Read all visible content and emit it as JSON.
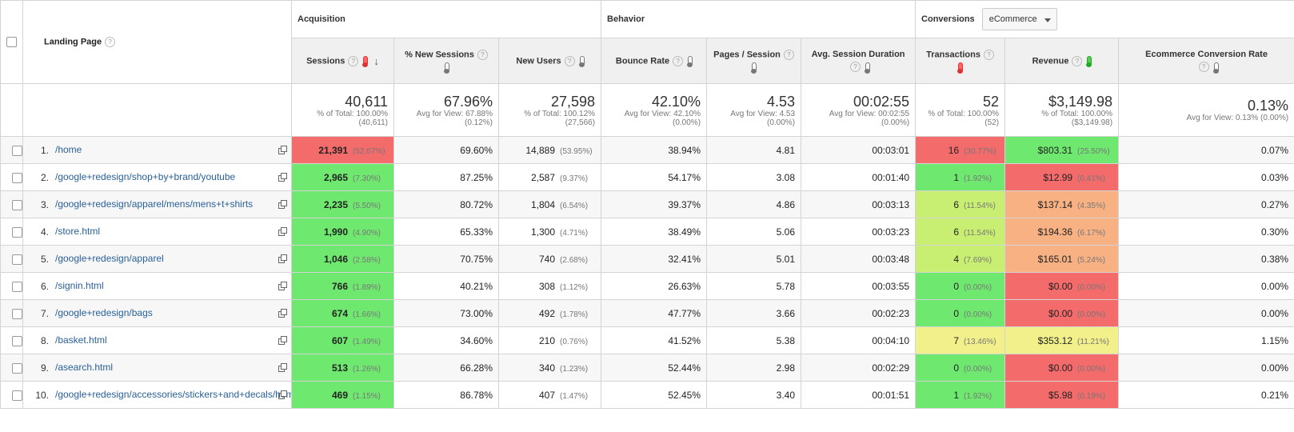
{
  "header": {
    "landing_page": "Landing Page",
    "groups": {
      "acquisition": "Acquisition",
      "behavior": "Behavior",
      "conversions": "Conversions"
    },
    "conversions_select": "eCommerce",
    "columns": {
      "sessions": "Sessions",
      "new_sessions": "% New Sessions",
      "new_users": "New Users",
      "bounce_rate": "Bounce Rate",
      "pages_session": "Pages / Session",
      "avg_duration": "Avg. Session Duration",
      "transactions": "Transactions",
      "revenue": "Revenue",
      "conv_rate": "Ecommerce Conversion Rate"
    },
    "help": "?"
  },
  "colors": {
    "heat_red": "#f46b6b",
    "heat_green": "#6fe86f",
    "heat_lime": "#c9ef72",
    "heat_yellow": "#f1f08a",
    "heat_orange": "#f7b183",
    "link": "#2a6099"
  },
  "totals": {
    "sessions": {
      "value": "40,611",
      "sub1": "% of Total: 100.00%",
      "sub2": "(40,611)"
    },
    "new_sessions": {
      "value": "67.96%",
      "sub1": "Avg for View: 67.88%",
      "sub2": "(0.12%)"
    },
    "new_users": {
      "value": "27,598",
      "sub1": "% of Total: 100.12%",
      "sub2": "(27,566)"
    },
    "bounce_rate": {
      "value": "42.10%",
      "sub1": "Avg for View: 42.10%",
      "sub2": "(0.00%)"
    },
    "pages_session": {
      "value": "4.53",
      "sub1": "Avg for View: 4.53",
      "sub2": "(0.00%)"
    },
    "avg_duration": {
      "value": "00:02:55",
      "sub1": "Avg for View: 00:02:55",
      "sub2": "(0.00%)"
    },
    "transactions": {
      "value": "52",
      "sub1": "% of Total: 100.00%",
      "sub2": "(52)"
    },
    "revenue": {
      "value": "$3,149.98",
      "sub1": "% of Total: 100.00%",
      "sub2": "($3,149.98)"
    },
    "conv_rate": {
      "value": "0.13%",
      "sub1": "Avg for View: 0.13% (0.00%)",
      "sub2": ""
    }
  },
  "rows": [
    {
      "rank": "1.",
      "page": "/home",
      "sessions": "21,391",
      "sessions_pct": "(52.67%)",
      "new_sessions": "69.60%",
      "new_users": "14,889",
      "new_users_pct": "(53.95%)",
      "bounce_rate": "38.94%",
      "pages_session": "4.81",
      "avg_duration": "00:03:01",
      "transactions": "16",
      "transactions_pct": "(30.77%)",
      "revenue": "$803.31",
      "revenue_pct": "(25.50%)",
      "conv_rate": "0.07%",
      "sessions_heat": "red",
      "tx_heat": "red",
      "rev_heat": "green"
    },
    {
      "rank": "2.",
      "page": "/google+redesign/shop+by+brand/youtube",
      "sessions": "2,965",
      "sessions_pct": "(7.30%)",
      "new_sessions": "87.25%",
      "new_users": "2,587",
      "new_users_pct": "(9.37%)",
      "bounce_rate": "54.17%",
      "pages_session": "3.08",
      "avg_duration": "00:01:40",
      "transactions": "1",
      "transactions_pct": "(1.92%)",
      "revenue": "$12.99",
      "revenue_pct": "(0.41%)",
      "conv_rate": "0.03%",
      "sessions_heat": "green",
      "tx_heat": "green",
      "rev_heat": "red"
    },
    {
      "rank": "3.",
      "page": "/google+redesign/apparel/mens/mens+t+shirts",
      "sessions": "2,235",
      "sessions_pct": "(5.50%)",
      "new_sessions": "80.72%",
      "new_users": "1,804",
      "new_users_pct": "(6.54%)",
      "bounce_rate": "39.37%",
      "pages_session": "4.86",
      "avg_duration": "00:03:13",
      "transactions": "6",
      "transactions_pct": "(11.54%)",
      "revenue": "$137.14",
      "revenue_pct": "(4.35%)",
      "conv_rate": "0.27%",
      "sessions_heat": "green",
      "tx_heat": "lime",
      "rev_heat": "orange"
    },
    {
      "rank": "4.",
      "page": "/store.html",
      "sessions": "1,990",
      "sessions_pct": "(4.90%)",
      "new_sessions": "65.33%",
      "new_users": "1,300",
      "new_users_pct": "(4.71%)",
      "bounce_rate": "38.49%",
      "pages_session": "5.06",
      "avg_duration": "00:03:23",
      "transactions": "6",
      "transactions_pct": "(11.54%)",
      "revenue": "$194.36",
      "revenue_pct": "(6.17%)",
      "conv_rate": "0.30%",
      "sessions_heat": "green",
      "tx_heat": "lime",
      "rev_heat": "orange"
    },
    {
      "rank": "5.",
      "page": "/google+redesign/apparel",
      "sessions": "1,046",
      "sessions_pct": "(2.58%)",
      "new_sessions": "70.75%",
      "new_users": "740",
      "new_users_pct": "(2.68%)",
      "bounce_rate": "32.41%",
      "pages_session": "5.01",
      "avg_duration": "00:03:48",
      "transactions": "4",
      "transactions_pct": "(7.69%)",
      "revenue": "$165.01",
      "revenue_pct": "(5.24%)",
      "conv_rate": "0.38%",
      "sessions_heat": "green",
      "tx_heat": "lime",
      "rev_heat": "orange"
    },
    {
      "rank": "6.",
      "page": "/signin.html",
      "sessions": "766",
      "sessions_pct": "(1.89%)",
      "new_sessions": "40.21%",
      "new_users": "308",
      "new_users_pct": "(1.12%)",
      "bounce_rate": "26.63%",
      "pages_session": "5.78",
      "avg_duration": "00:03:55",
      "transactions": "0",
      "transactions_pct": "(0.00%)",
      "revenue": "$0.00",
      "revenue_pct": "(0.00%)",
      "conv_rate": "0.00%",
      "sessions_heat": "green",
      "tx_heat": "green",
      "rev_heat": "red"
    },
    {
      "rank": "7.",
      "page": "/google+redesign/bags",
      "sessions": "674",
      "sessions_pct": "(1.66%)",
      "new_sessions": "73.00%",
      "new_users": "492",
      "new_users_pct": "(1.78%)",
      "bounce_rate": "47.77%",
      "pages_session": "3.66",
      "avg_duration": "00:02:23",
      "transactions": "0",
      "transactions_pct": "(0.00%)",
      "revenue": "$0.00",
      "revenue_pct": "(0.00%)",
      "conv_rate": "0.00%",
      "sessions_heat": "green",
      "tx_heat": "green",
      "rev_heat": "red"
    },
    {
      "rank": "8.",
      "page": "/basket.html",
      "sessions": "607",
      "sessions_pct": "(1.49%)",
      "new_sessions": "34.60%",
      "new_users": "210",
      "new_users_pct": "(0.76%)",
      "bounce_rate": "41.52%",
      "pages_session": "5.38",
      "avg_duration": "00:04:10",
      "transactions": "7",
      "transactions_pct": "(13.46%)",
      "revenue": "$353.12",
      "revenue_pct": "(11.21%)",
      "conv_rate": "1.15%",
      "sessions_heat": "green",
      "tx_heat": "yellow",
      "rev_heat": "yellow"
    },
    {
      "rank": "9.",
      "page": "/asearch.html",
      "sessions": "513",
      "sessions_pct": "(1.26%)",
      "new_sessions": "66.28%",
      "new_users": "340",
      "new_users_pct": "(1.23%)",
      "bounce_rate": "52.44%",
      "pages_session": "2.98",
      "avg_duration": "00:02:29",
      "transactions": "0",
      "transactions_pct": "(0.00%)",
      "revenue": "$0.00",
      "revenue_pct": "(0.00%)",
      "conv_rate": "0.00%",
      "sessions_heat": "green",
      "tx_heat": "green",
      "rev_heat": "red"
    },
    {
      "rank": "10.",
      "page": "/google+redesign/accessories/stickers+and+decals/home",
      "sessions": "469",
      "sessions_pct": "(1.15%)",
      "new_sessions": "86.78%",
      "new_users": "407",
      "new_users_pct": "(1.47%)",
      "bounce_rate": "52.45%",
      "pages_session": "3.40",
      "avg_duration": "00:01:51",
      "transactions": "1",
      "transactions_pct": "(1.92%)",
      "revenue": "$5.98",
      "revenue_pct": "(0.19%)",
      "conv_rate": "0.21%",
      "sessions_heat": "green",
      "tx_heat": "green",
      "rev_heat": "red"
    }
  ]
}
